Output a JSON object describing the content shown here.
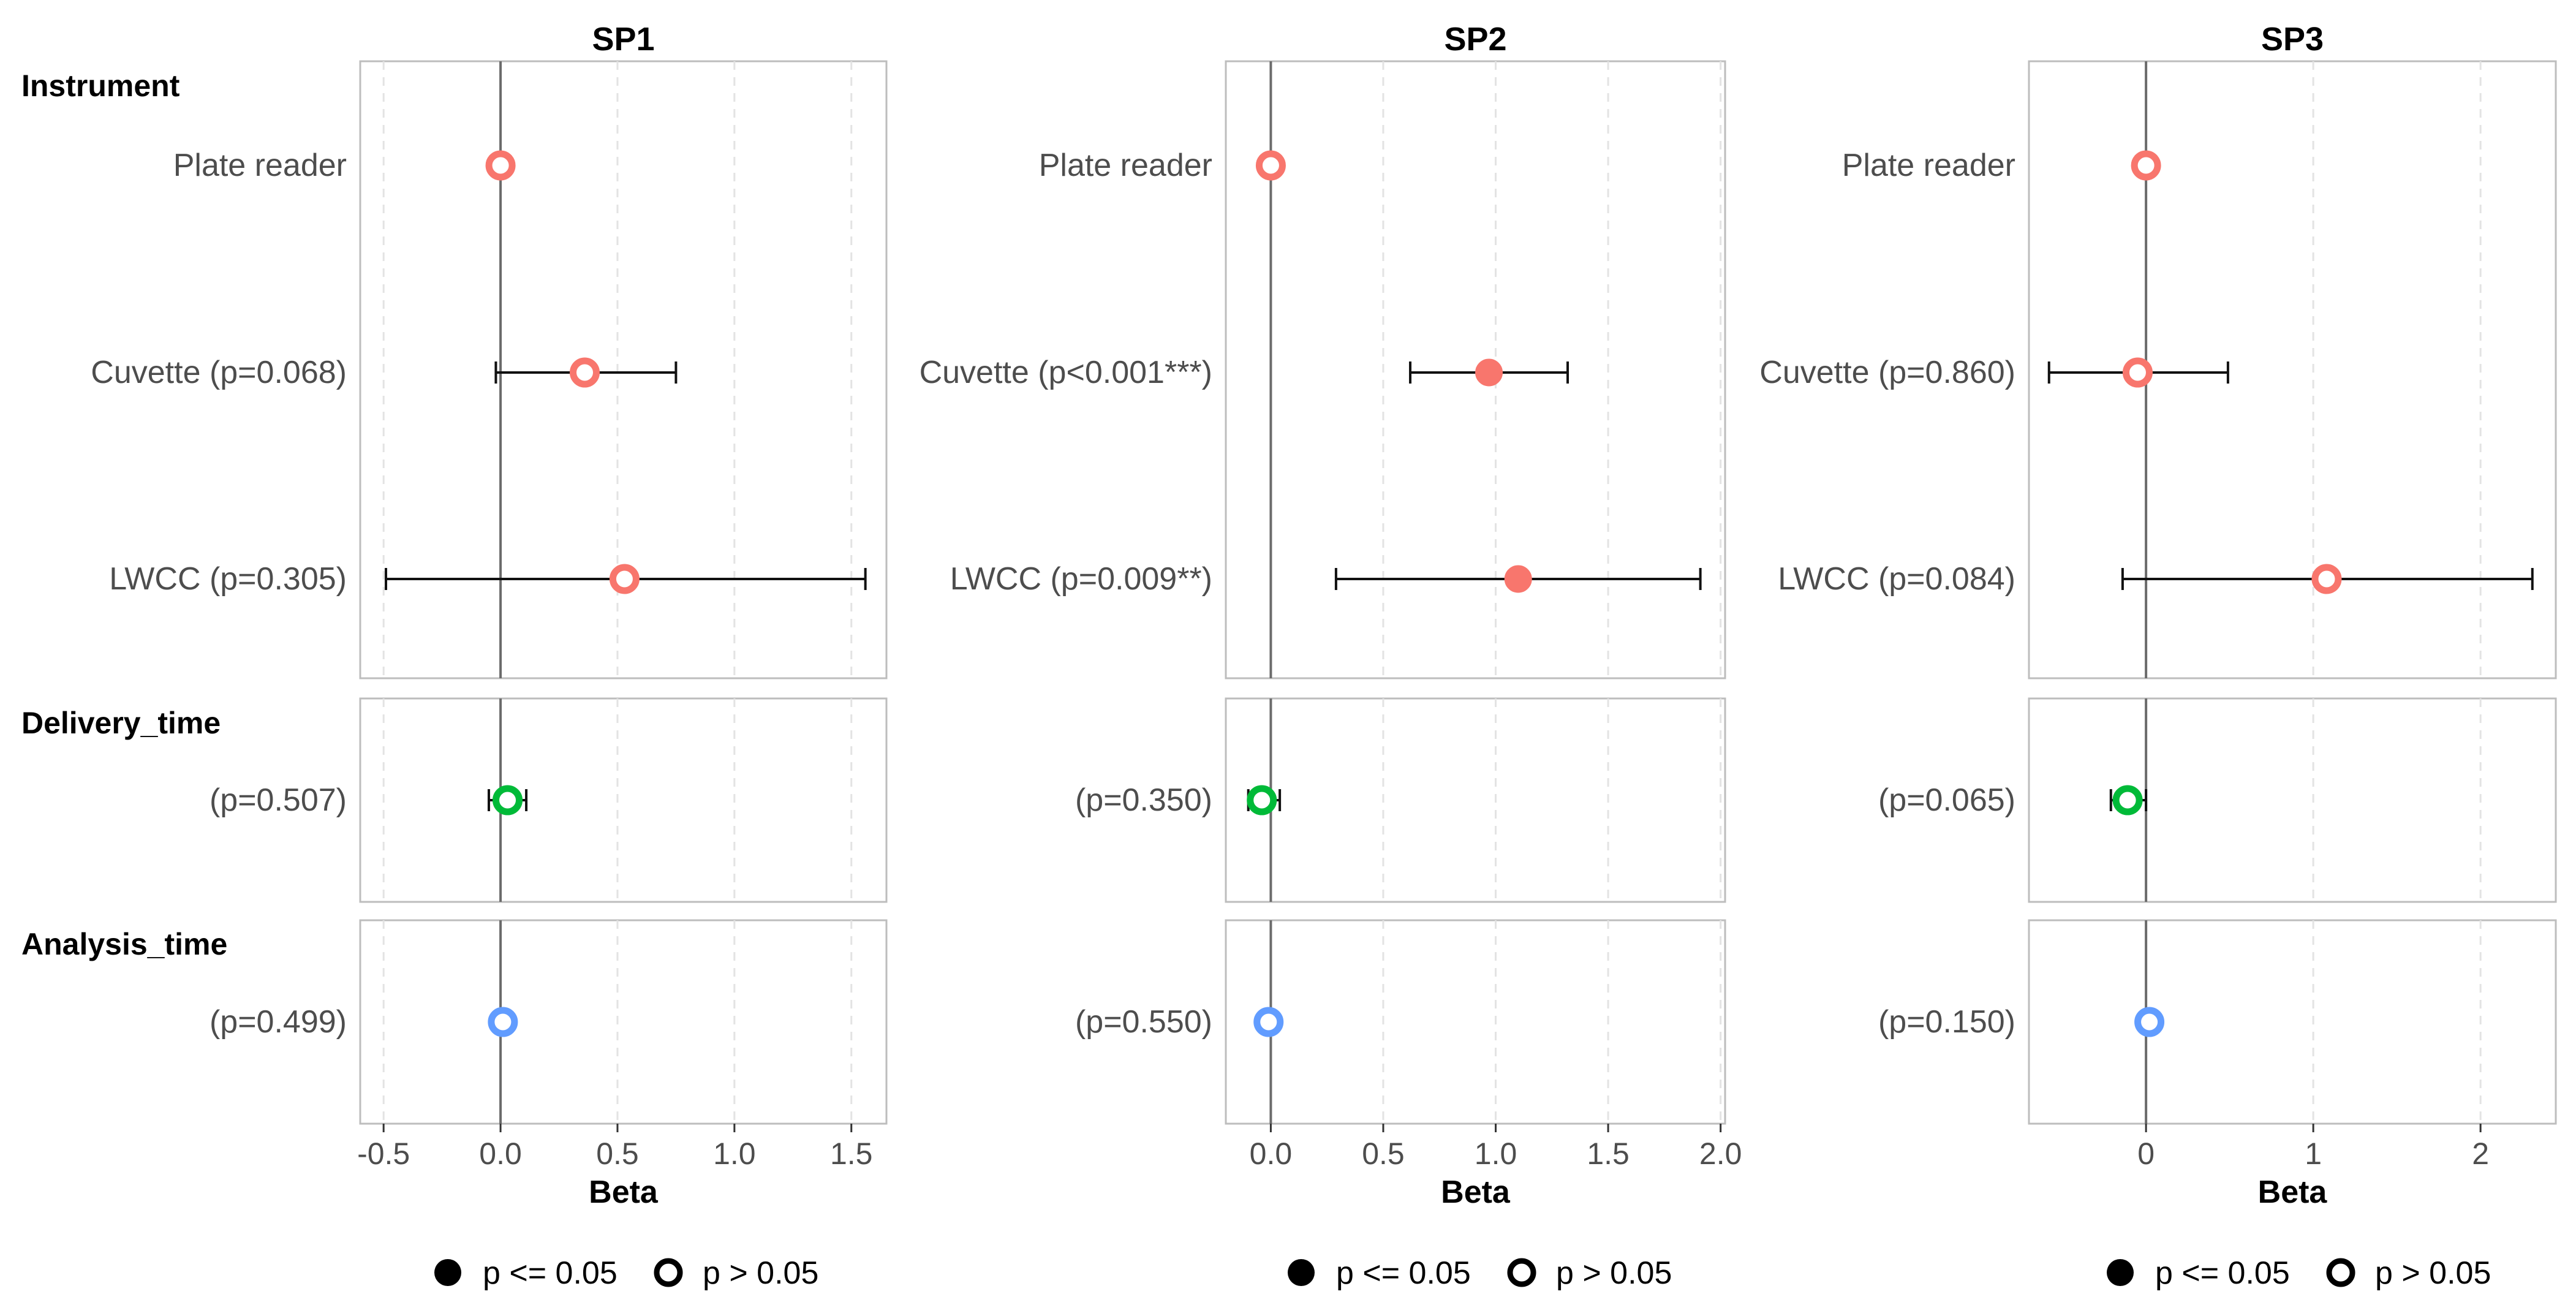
{
  "chart_data": {
    "type": "forest",
    "groups": [
      "Instrument",
      "Delivery_time",
      "Analysis_time"
    ],
    "group_colors": {
      "Instrument": "#f8766d",
      "Delivery_time": "#00ba38",
      "Analysis_time": "#619cff"
    },
    "xlabel": "Beta",
    "legend": {
      "position": "bottom",
      "items": [
        {
          "label": "p <= 0.05",
          "marker": "filled"
        },
        {
          "label": "p > 0.05",
          "marker": "open"
        }
      ]
    },
    "panels": [
      {
        "title": "SP1",
        "xlim": [
          -0.6,
          1.65
        ],
        "ticks": [
          -0.5,
          0.0,
          0.5,
          1.0,
          1.5
        ],
        "tick_labels": [
          "-0.5",
          "0.0",
          "0.5",
          "1.0",
          "1.5"
        ],
        "minor_grid": [
          -0.5,
          0.5,
          1.0,
          1.5
        ],
        "rows": [
          {
            "group": "Instrument",
            "name": "Plate reader",
            "pval": "",
            "beta": 0.0,
            "lo": null,
            "hi": null,
            "significant": false
          },
          {
            "group": "Instrument",
            "name": "Cuvette",
            "pval": "(p=0.068)",
            "beta": 0.36,
            "lo": -0.02,
            "hi": 0.75,
            "significant": false
          },
          {
            "group": "Instrument",
            "name": "LWCC",
            "pval": "(p=0.305)",
            "beta": 0.53,
            "lo": -0.49,
            "hi": 1.56,
            "significant": false
          },
          {
            "group": "Delivery_time",
            "name": "",
            "pval": "(p=0.507)",
            "beta": 0.03,
            "lo": -0.05,
            "hi": 0.11,
            "significant": false
          },
          {
            "group": "Analysis_time",
            "name": "",
            "pval": "(p=0.499)",
            "beta": 0.01,
            "lo": null,
            "hi": null,
            "significant": false
          }
        ]
      },
      {
        "title": "SP2",
        "xlim": [
          -0.2,
          2.02
        ],
        "ticks": [
          0.0,
          0.5,
          1.0,
          1.5,
          2.0
        ],
        "tick_labels": [
          "0.0",
          "0.5",
          "1.0",
          "1.5",
          "2.0"
        ],
        "minor_grid": [
          0.5,
          1.0,
          1.5,
          2.0
        ],
        "rows": [
          {
            "group": "Instrument",
            "name": "Plate reader",
            "pval": "",
            "beta": 0.0,
            "lo": null,
            "hi": null,
            "significant": false
          },
          {
            "group": "Instrument",
            "name": "Cuvette",
            "pval": "(p<0.001***)",
            "beta": 0.97,
            "lo": 0.62,
            "hi": 1.32,
            "significant": true
          },
          {
            "group": "Instrument",
            "name": "LWCC",
            "pval": "(p=0.009**)",
            "beta": 1.1,
            "lo": 0.29,
            "hi": 1.91,
            "significant": true
          },
          {
            "group": "Delivery_time",
            "name": "",
            "pval": "(p=0.350)",
            "beta": -0.04,
            "lo": -0.1,
            "hi": 0.04,
            "significant": false
          },
          {
            "group": "Analysis_time",
            "name": "",
            "pval": "(p=0.550)",
            "beta": -0.01,
            "lo": null,
            "hi": null,
            "significant": false
          }
        ]
      },
      {
        "title": "SP3",
        "xlim": [
          -0.7,
          2.45
        ],
        "ticks": [
          0,
          1,
          2
        ],
        "tick_labels": [
          "0",
          "1",
          "2"
        ],
        "minor_grid": [
          1,
          2
        ],
        "rows": [
          {
            "group": "Instrument",
            "name": "Plate reader",
            "pval": "",
            "beta": 0.0,
            "lo": null,
            "hi": null,
            "significant": false
          },
          {
            "group": "Instrument",
            "name": "Cuvette",
            "pval": "(p=0.860)",
            "beta": -0.05,
            "lo": -0.58,
            "hi": 0.49,
            "significant": false
          },
          {
            "group": "Instrument",
            "name": "LWCC",
            "pval": "(p=0.084)",
            "beta": 1.08,
            "lo": -0.14,
            "hi": 2.31,
            "significant": false
          },
          {
            "group": "Delivery_time",
            "name": "",
            "pval": "(p=0.065)",
            "beta": -0.11,
            "lo": -0.21,
            "hi": 0.0,
            "significant": false
          },
          {
            "group": "Analysis_time",
            "name": "",
            "pval": "(p=0.150)",
            "beta": 0.02,
            "lo": null,
            "hi": null,
            "significant": false
          }
        ]
      }
    ]
  }
}
